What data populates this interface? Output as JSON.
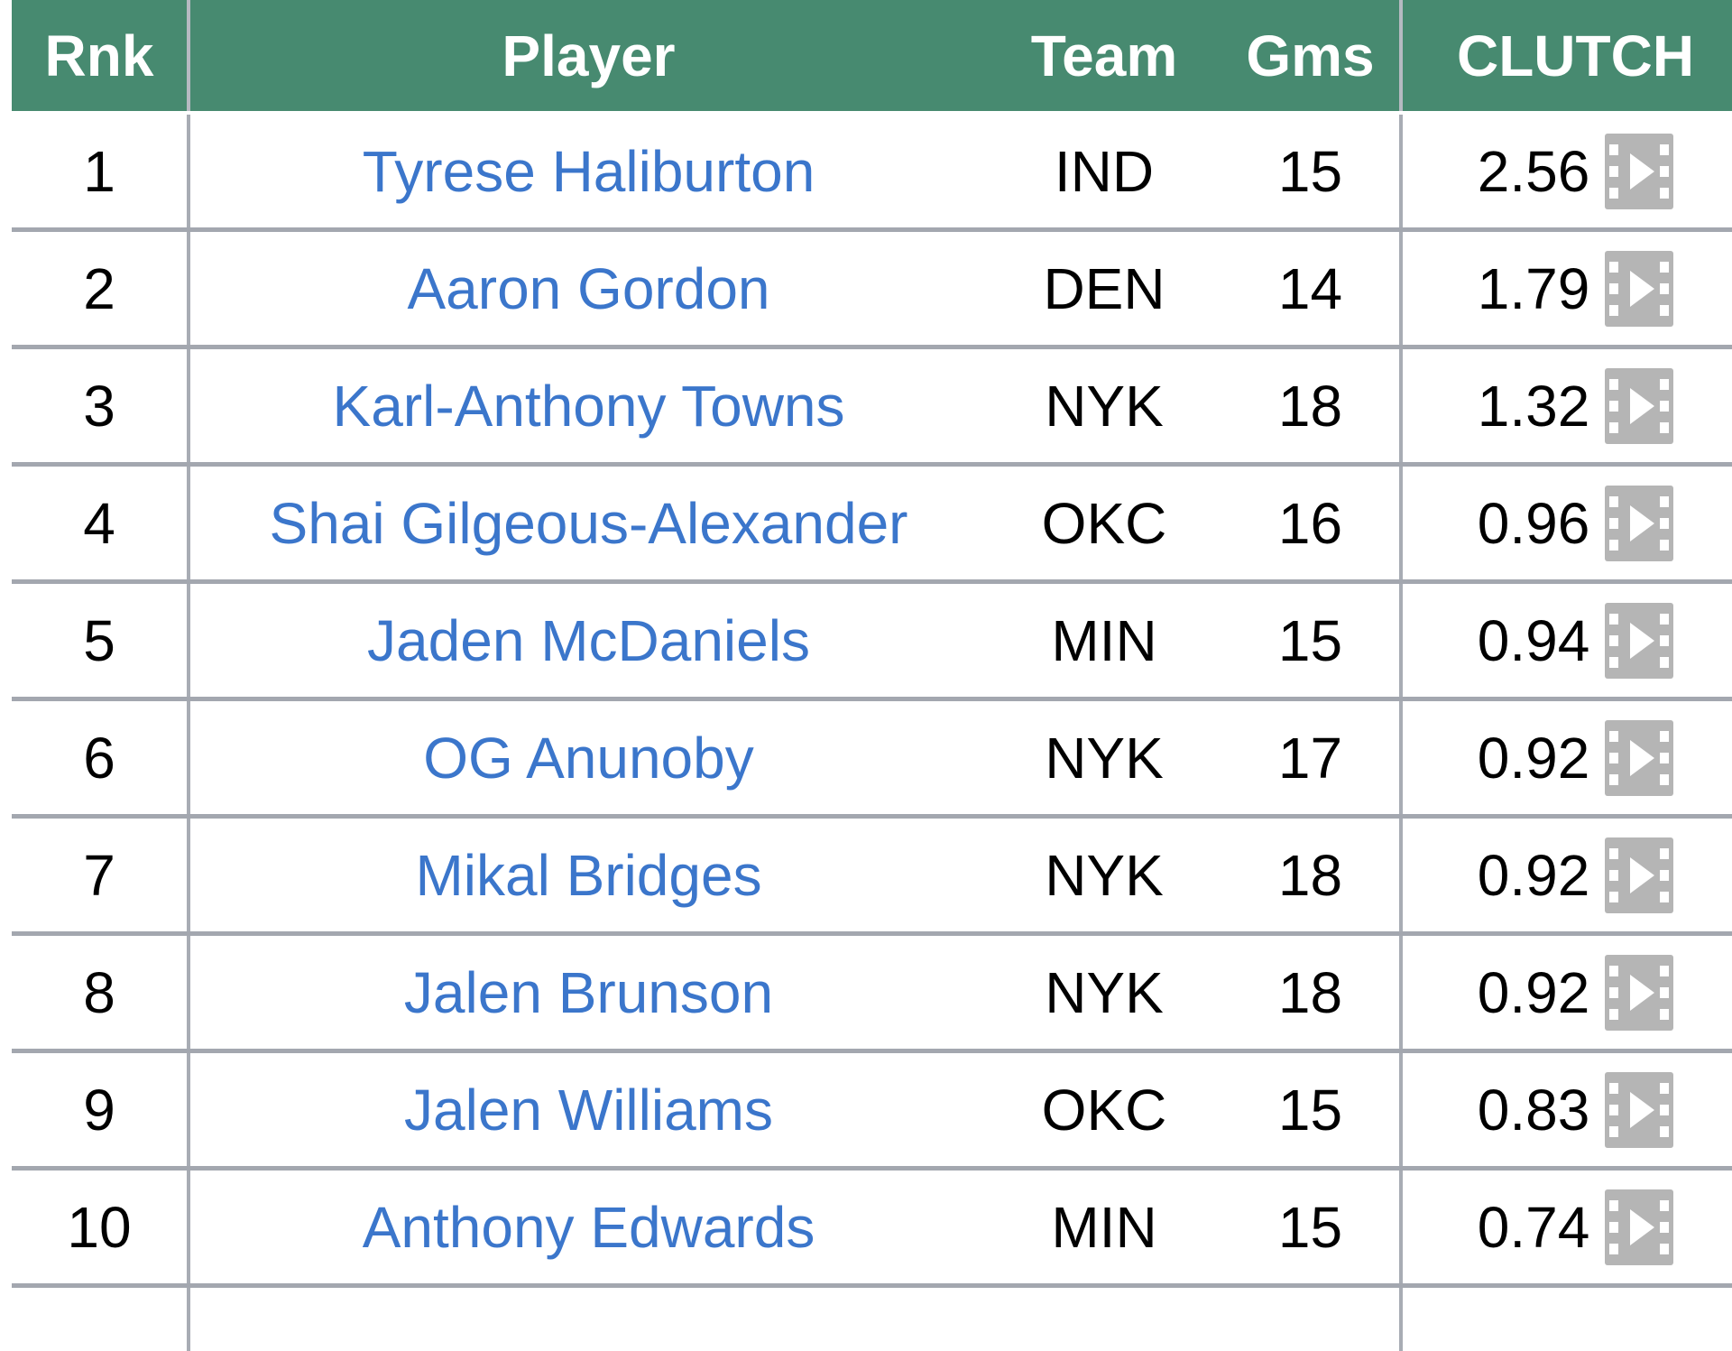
{
  "table": {
    "name": "clutch-leaders-table",
    "headers": {
      "rank": "Rnk",
      "player": "Player",
      "team": "Team",
      "games": "Gms",
      "clutch": "CLUTCH"
    },
    "rows": [
      {
        "rank": "1",
        "player": "Tyrese Haliburton",
        "team": "IND",
        "games": "15",
        "clutch": "2.56"
      },
      {
        "rank": "2",
        "player": "Aaron Gordon",
        "team": "DEN",
        "games": "14",
        "clutch": "1.79"
      },
      {
        "rank": "3",
        "player": "Karl-Anthony Towns",
        "team": "NYK",
        "games": "18",
        "clutch": "1.32"
      },
      {
        "rank": "4",
        "player": "Shai Gilgeous-Alexander",
        "team": "OKC",
        "games": "16",
        "clutch": "0.96"
      },
      {
        "rank": "5",
        "player": "Jaden McDaniels",
        "team": "MIN",
        "games": "15",
        "clutch": "0.94"
      },
      {
        "rank": "6",
        "player": "OG Anunoby",
        "team": "NYK",
        "games": "17",
        "clutch": "0.92"
      },
      {
        "rank": "7",
        "player": "Mikal Bridges",
        "team": "NYK",
        "games": "18",
        "clutch": "0.92"
      },
      {
        "rank": "8",
        "player": "Jalen Brunson",
        "team": "NYK",
        "games": "18",
        "clutch": "0.92"
      },
      {
        "rank": "9",
        "player": "Jalen Williams",
        "team": "OKC",
        "games": "15",
        "clutch": "0.83"
      },
      {
        "rank": "10",
        "player": "Anthony Edwards",
        "team": "MIN",
        "games": "15",
        "clutch": "0.74"
      }
    ],
    "icons": {
      "clutch_video": "film-play-icon"
    },
    "colors": {
      "header_bg": "#478a70",
      "header_text": "#ffffff",
      "link_blue": "#3b76cb",
      "body_text": "#000000",
      "row_separator": "#a3a7af",
      "column_separator": "#a8acb4",
      "icon_gray": "#b5b5b5"
    }
  }
}
